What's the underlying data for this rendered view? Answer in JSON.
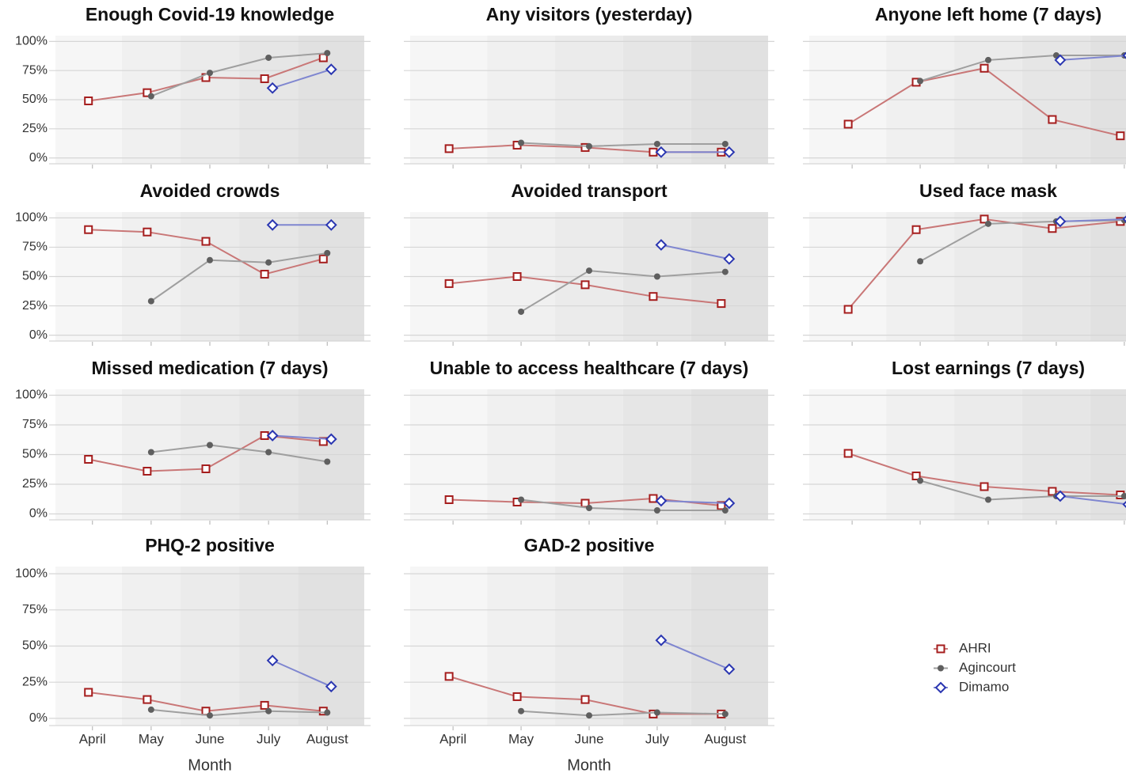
{
  "chart_data": [
    {
      "type": "line",
      "title": "Enough Covid-19 knowledge",
      "categories": [
        null,
        null,
        null,
        null,
        null
      ],
      "ylim": [
        -5,
        105
      ],
      "yticks": [
        {
          "value": 0,
          "label": "0%"
        },
        {
          "value": 25,
          "label": "25%"
        },
        {
          "value": 50,
          "label": "50%"
        },
        {
          "value": 75,
          "label": "75%"
        },
        {
          "value": 100,
          "label": "100%"
        }
      ],
      "series": [
        {
          "color": "#a51d1d",
          "marker": "square",
          "values": [
            49,
            56,
            69,
            68,
            86
          ]
        },
        {
          "color": "#5f5f5f",
          "marker": "circle",
          "values": [
            null,
            53,
            73,
            86,
            90
          ]
        },
        {
          "color": "#2a36b1",
          "marker": "diamond",
          "values": [
            null,
            null,
            null,
            60,
            76
          ]
        }
      ]
    },
    {
      "type": "line",
      "title": "Any visitors (yesterday)",
      "categories": [
        null,
        null,
        null,
        null,
        null
      ],
      "ylim": [
        -5,
        105
      ],
      "yticks": [
        0,
        25,
        50,
        75,
        100
      ],
      "series": [
        {
          "color": "#a51d1d",
          "marker": "square",
          "values": [
            8,
            11,
            9,
            5,
            5
          ]
        },
        {
          "color": "#5f5f5f",
          "marker": "circle",
          "values": [
            null,
            13,
            10,
            12,
            12
          ]
        },
        {
          "color": "#2a36b1",
          "marker": "diamond",
          "values": [
            null,
            null,
            null,
            5,
            5
          ]
        }
      ]
    },
    {
      "type": "line",
      "title": "Anyone left home (7 days)",
      "categories": [
        null,
        null,
        null,
        null,
        null
      ],
      "ylim": [
        -5,
        105
      ],
      "yticks": [
        0,
        25,
        50,
        75,
        100
      ],
      "series": [
        {
          "color": "#a51d1d",
          "marker": "square",
          "values": [
            29,
            65,
            77,
            33,
            19
          ]
        },
        {
          "color": "#5f5f5f",
          "marker": "circle",
          "values": [
            null,
            66,
            84,
            88,
            88
          ]
        },
        {
          "color": "#2a36b1",
          "marker": "diamond",
          "values": [
            null,
            null,
            null,
            84,
            88
          ]
        }
      ]
    },
    {
      "type": "line",
      "title": "Avoided crowds",
      "categories": [
        null,
        null,
        null,
        null,
        null
      ],
      "ylim": [
        -5,
        105
      ],
      "yticks": [
        {
          "value": 0,
          "label": "0%"
        },
        {
          "value": 25,
          "label": "25%"
        },
        {
          "value": 50,
          "label": "50%"
        },
        {
          "value": 75,
          "label": "75%"
        },
        {
          "value": 100,
          "label": "100%"
        }
      ],
      "series": [
        {
          "color": "#a51d1d",
          "marker": "square",
          "values": [
            90,
            88,
            80,
            52,
            65
          ]
        },
        {
          "color": "#5f5f5f",
          "marker": "circle",
          "values": [
            null,
            29,
            64,
            62,
            70
          ]
        },
        {
          "color": "#2a36b1",
          "marker": "diamond",
          "values": [
            null,
            null,
            null,
            94,
            94
          ]
        }
      ]
    },
    {
      "type": "line",
      "title": "Avoided transport",
      "categories": [
        null,
        null,
        null,
        null,
        null
      ],
      "ylim": [
        -5,
        105
      ],
      "yticks": [
        0,
        25,
        50,
        75,
        100
      ],
      "series": [
        {
          "color": "#a51d1d",
          "marker": "square",
          "values": [
            44,
            50,
            43,
            33,
            27
          ]
        },
        {
          "color": "#5f5f5f",
          "marker": "circle",
          "values": [
            null,
            20,
            55,
            50,
            54
          ]
        },
        {
          "color": "#2a36b1",
          "marker": "diamond",
          "values": [
            null,
            null,
            null,
            77,
            65
          ]
        }
      ]
    },
    {
      "type": "line",
      "title": "Used face mask",
      "categories": [
        null,
        null,
        null,
        null,
        null
      ],
      "ylim": [
        -5,
        105
      ],
      "yticks": [
        0,
        25,
        50,
        75,
        100
      ],
      "series": [
        {
          "color": "#a51d1d",
          "marker": "square",
          "values": [
            22,
            90,
            99,
            91,
            97
          ]
        },
        {
          "color": "#5f5f5f",
          "marker": "circle",
          "values": [
            null,
            63,
            95,
            97,
            98
          ]
        },
        {
          "color": "#2a36b1",
          "marker": "diamond",
          "values": [
            null,
            null,
            null,
            97,
            99
          ]
        }
      ]
    },
    {
      "type": "line",
      "title": "Missed medication (7 days)",
      "categories": [
        null,
        null,
        null,
        null,
        null
      ],
      "ylim": [
        -5,
        105
      ],
      "yticks": [
        {
          "value": 0,
          "label": "0%"
        },
        {
          "value": 25,
          "label": "25%"
        },
        {
          "value": 50,
          "label": "50%"
        },
        {
          "value": 75,
          "label": "75%"
        },
        {
          "value": 100,
          "label": "100%"
        }
      ],
      "series": [
        {
          "color": "#a51d1d",
          "marker": "square",
          "values": [
            46,
            36,
            38,
            66,
            61
          ]
        },
        {
          "color": "#5f5f5f",
          "marker": "circle",
          "values": [
            null,
            52,
            58,
            52,
            44
          ]
        },
        {
          "color": "#2a36b1",
          "marker": "diamond",
          "values": [
            null,
            null,
            null,
            66,
            63
          ]
        }
      ]
    },
    {
      "type": "line",
      "title": "Unable to access healthcare (7 days)",
      "categories": [
        null,
        null,
        null,
        null,
        null
      ],
      "ylim": [
        -5,
        105
      ],
      "yticks": [
        0,
        25,
        50,
        75,
        100
      ],
      "series": [
        {
          "color": "#a51d1d",
          "marker": "square",
          "values": [
            12,
            10,
            9,
            13,
            7
          ]
        },
        {
          "color": "#5f5f5f",
          "marker": "circle",
          "values": [
            null,
            12,
            5,
            3,
            3
          ]
        },
        {
          "color": "#2a36b1",
          "marker": "diamond",
          "values": [
            null,
            null,
            null,
            11,
            9
          ]
        }
      ]
    },
    {
      "type": "line",
      "title": "Lost earnings (7 days)",
      "categories": [
        null,
        null,
        null,
        null,
        null
      ],
      "ylim": [
        -5,
        105
      ],
      "yticks": [
        0,
        25,
        50,
        75,
        100
      ],
      "series": [
        {
          "color": "#a51d1d",
          "marker": "square",
          "values": [
            51,
            32,
            23,
            19,
            16
          ]
        },
        {
          "color": "#5f5f5f",
          "marker": "circle",
          "values": [
            null,
            28,
            12,
            15,
            15
          ]
        },
        {
          "color": "#2a36b1",
          "marker": "diamond",
          "values": [
            null,
            null,
            null,
            15,
            8
          ]
        }
      ]
    },
    {
      "type": "line",
      "title": "PHQ-2 positive",
      "categories": [
        "April",
        "May",
        "June",
        "July",
        "August"
      ],
      "x_label": "Month",
      "ylim": [
        -5,
        105
      ],
      "yticks": [
        {
          "value": 0,
          "label": "0%"
        },
        {
          "value": 25,
          "label": "25%"
        },
        {
          "value": 50,
          "label": "50%"
        },
        {
          "value": 75,
          "label": "75%"
        },
        {
          "value": 100,
          "label": "100%"
        }
      ],
      "series": [
        {
          "color": "#a51d1d",
          "marker": "square",
          "values": [
            18,
            13,
            5,
            9,
            5
          ]
        },
        {
          "color": "#5f5f5f",
          "marker": "circle",
          "values": [
            null,
            6,
            2,
            5,
            4
          ]
        },
        {
          "color": "#2a36b1",
          "marker": "diamond",
          "values": [
            null,
            null,
            null,
            40,
            22
          ]
        }
      ]
    },
    {
      "type": "line",
      "title": "GAD-2 positive",
      "categories": [
        "April",
        "May",
        "June",
        "July",
        "August"
      ],
      "x_label": "Month",
      "ylim": [
        -5,
        105
      ],
      "yticks": [
        0,
        25,
        50,
        75,
        100
      ],
      "legend": "right",
      "series": [
        {
          "name": "AHRI",
          "color": "#a51d1d",
          "marker": "square",
          "values": [
            29,
            15,
            13,
            3,
            3
          ]
        },
        {
          "name": "Agincourt",
          "color": "#5f5f5f",
          "marker": "circle",
          "values": [
            null,
            5,
            2,
            4,
            3
          ]
        },
        {
          "name": "Dimamo",
          "color": "#2a36b1",
          "marker": "diamond",
          "values": [
            null,
            null,
            null,
            54,
            34
          ]
        }
      ]
    }
  ]
}
